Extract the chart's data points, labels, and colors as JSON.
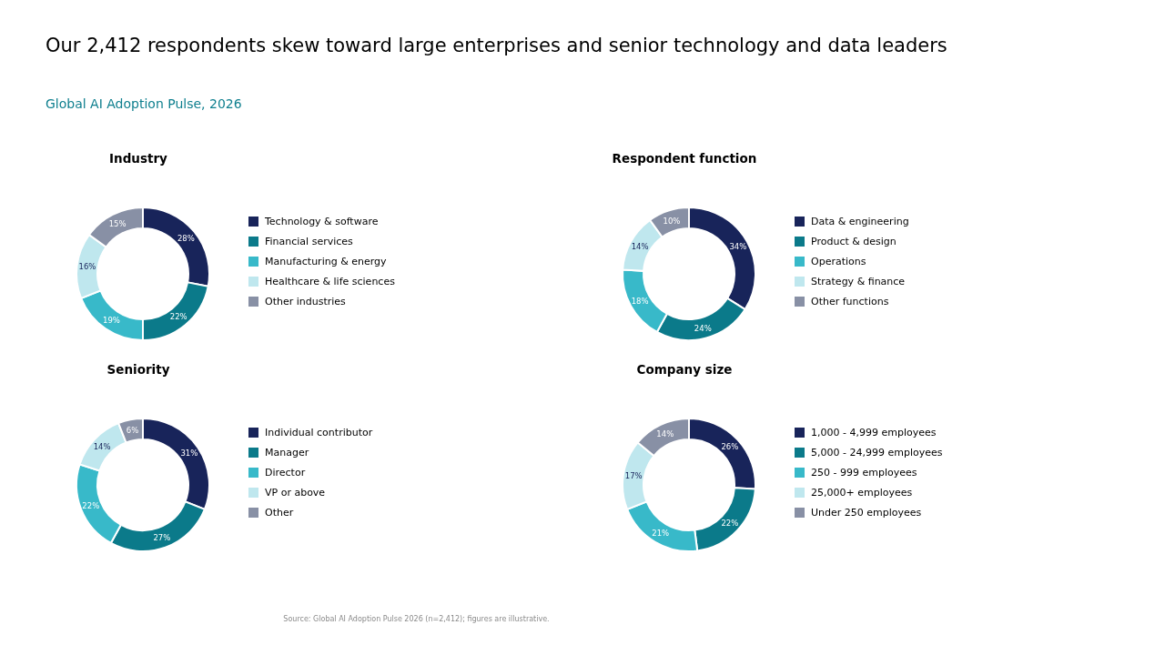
{
  "chart_data": [
    {
      "type": "other",
      "title": "Our 2,412 respondents skew toward large enterprises and senior technology and data leaders",
      "subtitle": "Global AI Adoption Pulse, 2026",
      "annotations": [
        "Source: Global AI Adoption Pulse 2026 (n=2,412); figures are illustrative."
      ]
    },
    {
      "type": "donut",
      "title": "Industry",
      "categories": [
        "Technology & software",
        "Financial services",
        "Manufacturing & energy",
        "Healthcare & life sciences",
        "Other industries"
      ],
      "values": [
        28,
        22,
        19,
        16,
        15
      ],
      "value_labels": [
        "28%",
        "22%",
        "19%",
        "16%",
        "15%"
      ],
      "colors": [
        "#18245a",
        "#0b7a8a",
        "#38b9c9",
        "#bfe7ee",
        "#8890a5"
      ],
      "legend": "right"
    },
    {
      "type": "donut",
      "title": "Respondent function",
      "categories": [
        "Data & engineering",
        "Product & design",
        "Operations",
        "Strategy & finance",
        "Other functions"
      ],
      "values": [
        34,
        24,
        18,
        14,
        10
      ],
      "value_labels": [
        "34%",
        "24%",
        "18%",
        "14%",
        "10%"
      ],
      "colors": [
        "#18245a",
        "#0b7a8a",
        "#38b9c9",
        "#bfe7ee",
        "#8890a5"
      ],
      "legend": "right"
    },
    {
      "type": "donut",
      "title": "Seniority",
      "categories": [
        "Individual contributor",
        "Manager",
        "Director",
        "VP or above",
        "Other"
      ],
      "values": [
        31,
        27,
        22,
        14,
        6
      ],
      "value_labels": [
        "31%",
        "27%",
        "22%",
        "14%",
        "6%"
      ],
      "colors": [
        "#18245a",
        "#0b7a8a",
        "#38b9c9",
        "#bfe7ee",
        "#8890a5"
      ],
      "legend": "right"
    },
    {
      "type": "donut",
      "title": "Company size",
      "categories": [
        "1,000 - 4,999 employees",
        "5,000 - 24,999 employees",
        "250 - 999 employees",
        "25,000+ employees",
        "Under 250 employees"
      ],
      "values": [
        26,
        22,
        21,
        17,
        14
      ],
      "value_labels": [
        "26%",
        "22%",
        "21%",
        "17%",
        "14%"
      ],
      "colors": [
        "#18245a",
        "#0b7a8a",
        "#38b9c9",
        "#bfe7ee",
        "#8890a5"
      ],
      "legend": "right"
    }
  ]
}
